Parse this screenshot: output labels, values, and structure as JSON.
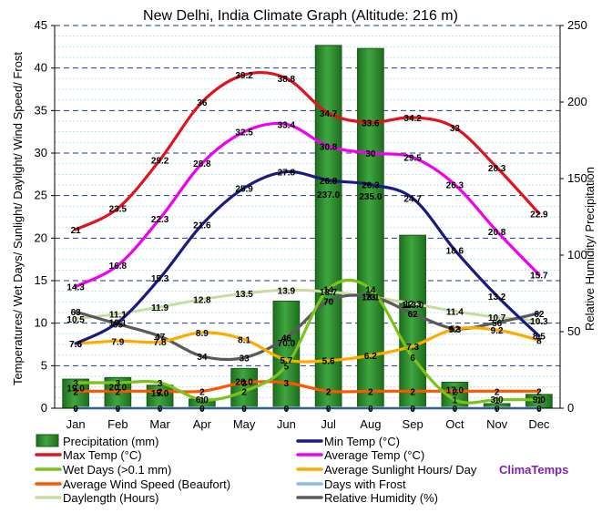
{
  "chart_data": {
    "type": "bar",
    "title": "New Delhi, India Climate Graph (Altitude: 216 m)",
    "ylabel_left": "Temperatures/ Wet Days/ Sunlight/ Daylight/ Wind Speed/ Frost",
    "ylabel_right": "Relative Humidity/ Precipitation",
    "ylim_left": [
      0,
      45
    ],
    "ylim_right": [
      0,
      250
    ],
    "yticks_left": [
      "0",
      "5",
      "10",
      "15",
      "20",
      "25",
      "30",
      "35",
      "40",
      "45"
    ],
    "yticks_right": [
      "0",
      "50",
      "100",
      "150",
      "200",
      "250"
    ],
    "categories": [
      "Jan",
      "Feb",
      "Mar",
      "Apr",
      "May",
      "Jun",
      "Jul",
      "Aug",
      "Sep",
      "Oct",
      "Nov",
      "Dec"
    ],
    "grid": true,
    "legend_position": "bottom",
    "brand": "ClimaTemps",
    "series": [
      {
        "name": "Precipitation (mm)",
        "type": "bar",
        "axis": "right",
        "color": "#2e8b2e",
        "values": [
          19.0,
          20.0,
          15.0,
          6.0,
          26.0,
          70.0,
          237.0,
          235.0,
          113.0,
          17.0,
          3.0,
          9.0
        ]
      },
      {
        "name": "Min Temp (°C)",
        "type": "line",
        "axis": "left",
        "color": "#1a1a80",
        "values": [
          7.6,
          10.1,
          15.3,
          21.6,
          25.9,
          27.8,
          26.8,
          26.3,
          24.7,
          18.6,
          13.2,
          8.5
        ]
      },
      {
        "name": "Max Temp (°C)",
        "type": "line",
        "axis": "left",
        "color": "#e0141e",
        "values": [
          21,
          23.5,
          29.2,
          36,
          39.2,
          38.8,
          34.7,
          33.6,
          34.2,
          33,
          28.3,
          22.9
        ]
      },
      {
        "name": "Average Temp (°C)",
        "type": "line",
        "axis": "left",
        "color": "#f000f0",
        "values": [
          14.3,
          16.8,
          22.3,
          28.8,
          32.5,
          33.4,
          30.8,
          30,
          29.5,
          26.3,
          20.8,
          15.7
        ]
      },
      {
        "name": "Wet Days (>0.1 mm)",
        "type": "line",
        "axis": "left",
        "color": "#7ac41a",
        "values": [
          3,
          3,
          3,
          1,
          2,
          5,
          14,
          14,
          6,
          1,
          1,
          1
        ]
      },
      {
        "name": "Average Sunlight Hours/ Day",
        "type": "line",
        "axis": "left",
        "color": "#ffaa00",
        "values": [
          7.6,
          7.9,
          7.8,
          8.9,
          8.1,
          5.7,
          5.6,
          6.2,
          7.3,
          9.3,
          9.2,
          8
        ]
      },
      {
        "name": "Average Wind Speed (Beaufort)",
        "type": "line",
        "axis": "left",
        "color": "#ff5500",
        "values": [
          2,
          2,
          2,
          2,
          3,
          3,
          2,
          2,
          2,
          2,
          2,
          2
        ]
      },
      {
        "name": "Days with Frost",
        "type": "line",
        "axis": "left",
        "color": "#88bbee",
        "values": [
          0,
          0,
          0,
          0,
          0,
          0,
          0,
          0,
          0,
          0,
          0,
          0
        ]
      },
      {
        "name": "Daylength (Hours)",
        "type": "line",
        "axis": "left",
        "color": "#c8dca0",
        "values": [
          10.5,
          11.1,
          11.9,
          12.8,
          13.5,
          13.9,
          13.7,
          13.1,
          12.3,
          11.4,
          10.7,
          10.3
        ]
      },
      {
        "name": "Relative Humidity (%)",
        "type": "line",
        "axis": "right",
        "color": "#5a5a5a",
        "values": [
          63,
          55,
          47,
          34,
          33,
          46,
          70,
          73,
          62,
          52,
          56,
          62
        ]
      }
    ]
  }
}
